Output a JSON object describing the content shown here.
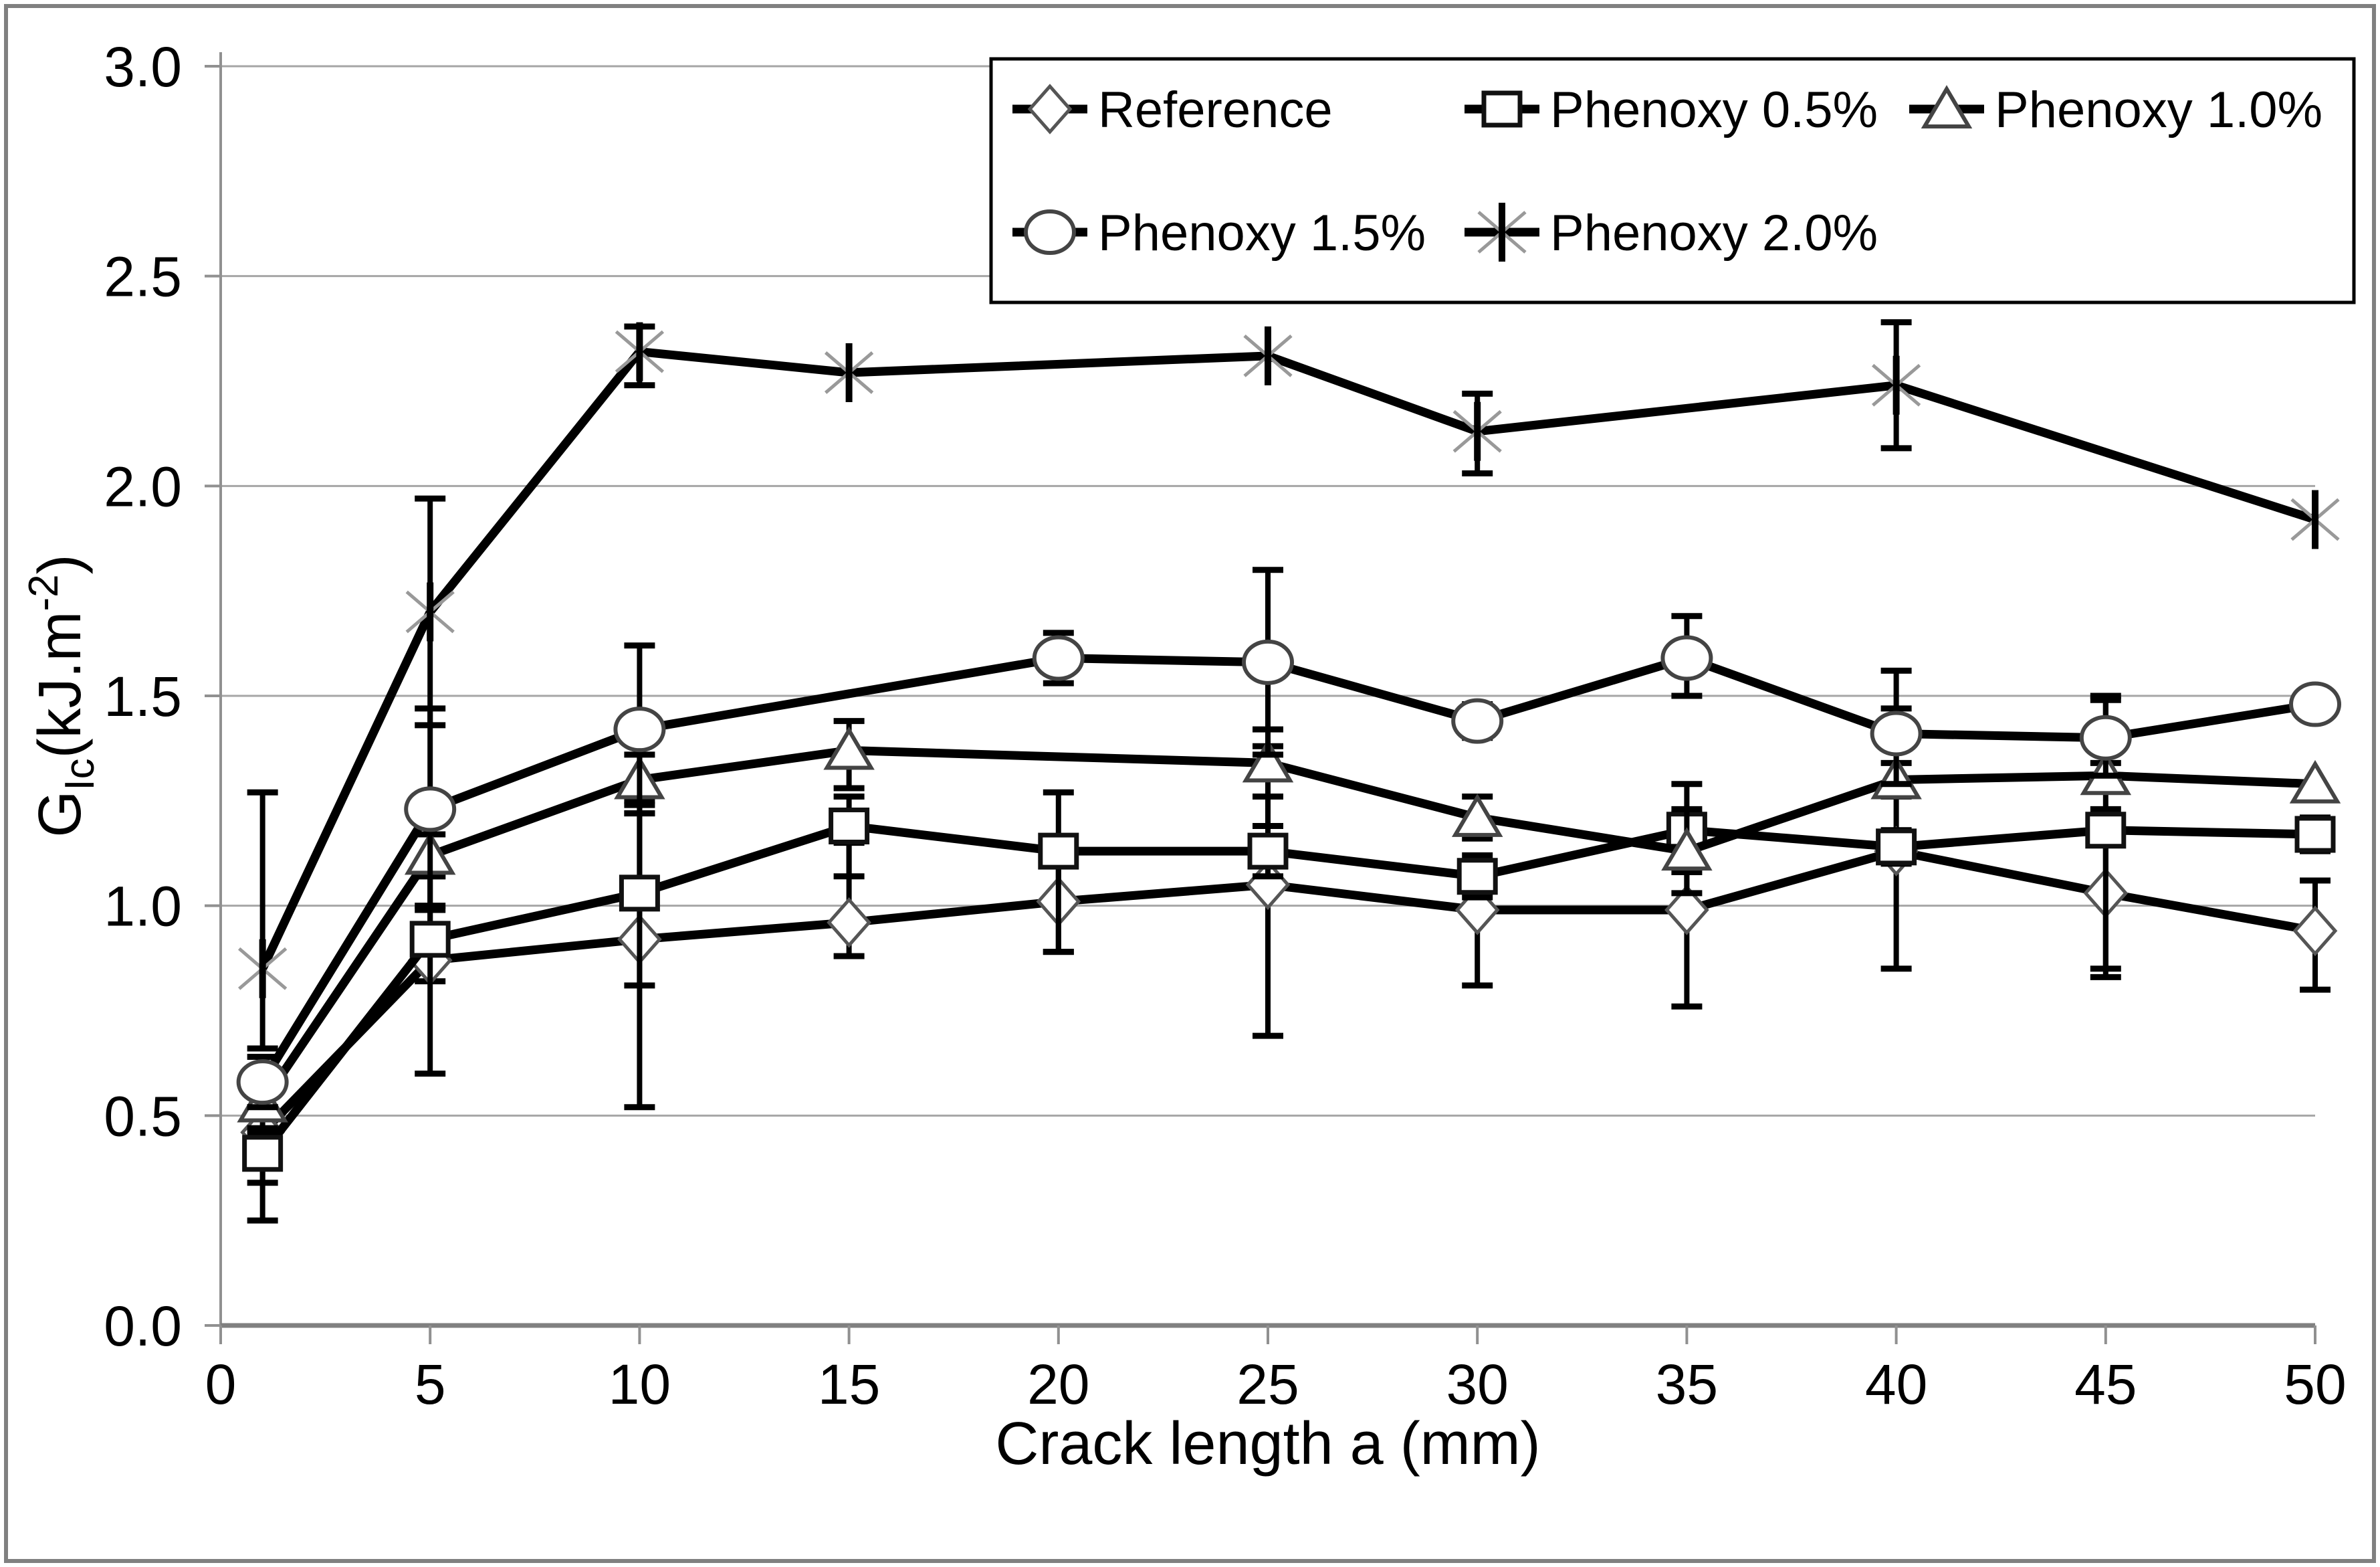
{
  "chart_data": {
    "type": "line",
    "title": "",
    "xlabel": "Crack length a (mm)",
    "ylabel": {
      "base": "G",
      "sub": "Ic",
      "mid": "(kJ.m",
      "sup": "-2",
      "end": ")"
    },
    "xlim": [
      0,
      50
    ],
    "ylim": [
      0.0,
      3.0
    ],
    "xticks": [
      "0",
      "5",
      "10",
      "15",
      "20",
      "25",
      "30",
      "35",
      "40",
      "45",
      "50"
    ],
    "xtick_values": [
      0,
      5,
      10,
      15,
      20,
      25,
      30,
      35,
      40,
      45,
      50
    ],
    "yticks": [
      "0.0",
      "0.5",
      "1.0",
      "1.5",
      "2.0",
      "2.5",
      "3.0"
    ],
    "ytick_values": [
      0.0,
      0.5,
      1.0,
      1.5,
      2.0,
      2.5,
      3.0
    ],
    "grid": "horizontal-only",
    "legend_position": "top-inside",
    "colors": {
      "series": "#000000",
      "grid": "#a6a6a6",
      "axis": "#808080",
      "background": "#ffffff",
      "figure_border": "#808080",
      "legend_border": "#000000"
    },
    "series": [
      {
        "name": "Reference",
        "marker": "diamond",
        "points": [
          [
            1,
            0.46,
            0.06,
            0.12
          ],
          [
            5,
            0.87,
            0.12,
            0.05
          ],
          [
            10,
            0.92,
            0.3,
            0.4
          ],
          [
            15,
            0.96,
            0.19,
            0.08
          ],
          [
            20,
            1.01,
            0.12,
            0.12
          ],
          [
            25,
            1.05,
            0.33,
            0.36
          ],
          [
            30,
            0.99,
            0.07,
            0.18
          ],
          [
            35,
            0.99,
            0.23,
            0.23
          ],
          [
            40,
            1.13,
            0.34,
            0.28
          ],
          [
            45,
            1.03,
            0.2,
            0.2
          ],
          [
            50,
            0.94,
            0.12,
            0.14
          ]
        ]
      },
      {
        "name": "Phenoxy 0.5%",
        "marker": "square",
        "points": [
          [
            1,
            0.41,
            0.05,
            0.16
          ],
          [
            5,
            0.92,
            0.15,
            0.32
          ],
          [
            10,
            1.03,
            0.22,
            0.22
          ],
          [
            15,
            1.19,
            0.07,
            0.12
          ],
          [
            20,
            1.13,
            0.14,
            0.24
          ],
          [
            25,
            1.13,
            0.06,
            0.06
          ],
          [
            30,
            1.07,
            0.05,
            0.05
          ],
          [
            35,
            1.18,
            0.11,
            0.1
          ],
          [
            40,
            1.14,
            0.04,
            0.04
          ],
          [
            45,
            1.18,
            0.32,
            0.33
          ],
          [
            50,
            1.17,
            0.04,
            0.04
          ]
        ]
      },
      {
        "name": "Phenoxy 1.0%",
        "marker": "triangle",
        "points": [
          [
            1,
            0.53,
            0.06,
            0.06
          ],
          [
            5,
            1.12,
            0.05,
            0.05
          ],
          [
            10,
            1.3,
            0.06,
            0.06
          ],
          [
            15,
            1.37,
            0.07,
            0.09
          ],
          [
            25,
            1.34,
            0.08,
            0.08
          ],
          [
            30,
            1.21,
            0.05,
            0.05
          ],
          [
            35,
            1.13,
            0.1,
            0.1
          ],
          [
            40,
            1.3,
            0.04,
            0.04
          ],
          [
            45,
            1.31,
            0.03,
            0.03
          ],
          [
            50,
            1.29,
            0,
            0
          ]
        ]
      },
      {
        "name": "Phenoxy 1.5%",
        "marker": "circle",
        "points": [
          [
            1,
            0.58,
            0.06,
            0.06
          ],
          [
            5,
            1.23,
            0.24,
            0.23
          ],
          [
            10,
            1.42,
            0.2,
            0.2
          ],
          [
            20,
            1.59,
            0.06,
            0.06
          ],
          [
            25,
            1.58,
            0.22,
            0.22
          ],
          [
            30,
            1.44,
            0.04,
            0.04
          ],
          [
            35,
            1.59,
            0.1,
            0.09
          ],
          [
            40,
            1.41,
            0.15,
            0.12
          ],
          [
            45,
            1.4,
            0.09,
            0.09
          ],
          [
            50,
            1.48,
            0,
            0
          ]
        ]
      },
      {
        "name": "Phenoxy 2.0%",
        "marker": "asterisk",
        "points": [
          [
            1,
            0.85,
            0.42,
            0.19
          ],
          [
            5,
            1.7,
            0.27,
            0.27
          ],
          [
            10,
            2.32,
            0.06,
            0.08
          ],
          [
            15,
            2.27,
            0,
            0
          ],
          [
            25,
            2.31,
            0,
            0
          ],
          [
            30,
            2.13,
            0.09,
            0.1
          ],
          [
            40,
            2.24,
            0.15,
            0.15
          ],
          [
            50,
            1.92,
            0,
            0
          ]
        ]
      }
    ],
    "legend": {
      "rows": [
        [
          {
            "label": "Reference",
            "marker": "diamond"
          },
          {
            "label": "Phenoxy 0.5%",
            "marker": "square"
          },
          {
            "label": "Phenoxy 1.0%",
            "marker": "triangle"
          }
        ],
        [
          {
            "label": "Phenoxy 1.5%",
            "marker": "circle"
          },
          {
            "label": "Phenoxy 2.0%",
            "marker": "asterisk"
          }
        ]
      ]
    }
  }
}
